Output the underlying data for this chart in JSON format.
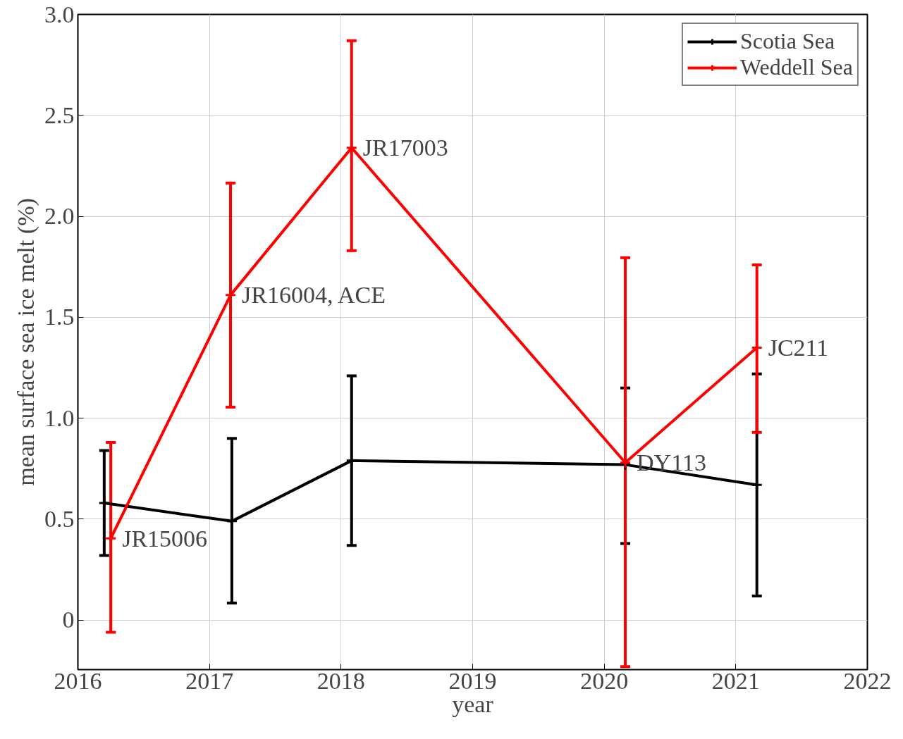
{
  "chart_data": {
    "type": "line",
    "xlabel": "year",
    "ylabel": "mean surface sea ice melt (%)",
    "xlim": [
      2016,
      2022
    ],
    "xticks": [
      2016,
      2017,
      2018,
      2019,
      2020,
      2021,
      2022
    ],
    "ylim": [
      -0.245,
      3.0
    ],
    "yticks": [
      0,
      {
        "value": 0.5,
        "label": "0.5"
      },
      {
        "value": 1.0,
        "label": "1.0"
      },
      {
        "value": 1.5,
        "label": "1.5"
      },
      {
        "value": 2.0,
        "label": "2.0"
      },
      {
        "value": 2.5,
        "label": "2.5"
      },
      {
        "value": 3.0,
        "label": "3.0"
      }
    ],
    "grid": true,
    "legend": "top right",
    "marker": "cross",
    "line_style": "solid",
    "series": [
      {
        "name": "Scotia Sea",
        "color": "#000000",
        "x": [
          2016.2,
          2017.17,
          2018.08,
          2020.16,
          2021.16
        ],
        "values": [
          0.58,
          0.49,
          0.79,
          0.77,
          0.67
        ],
        "errors": [
          [
            0.32,
            0.84
          ],
          [
            0.085,
            0.9
          ],
          [
            0.37,
            1.21
          ],
          [
            0.38,
            1.15
          ],
          [
            0.12,
            1.22
          ]
        ]
      },
      {
        "name": "Weddell Sea",
        "color": "#ff0000",
        "x": [
          2016.25,
          2017.16,
          2018.08,
          2020.16,
          2021.16
        ],
        "values": [
          0.405,
          1.61,
          2.34,
          0.78,
          1.35
        ],
        "errors": [
          [
            -0.06,
            0.88
          ],
          [
            1.055,
            2.165
          ],
          [
            1.83,
            2.87
          ],
          [
            -0.23,
            1.795
          ],
          [
            0.93,
            1.76
          ]
        ]
      }
    ],
    "annotations": [
      {
        "text": "JR15006",
        "x": 2016.25,
        "y": 0.405
      },
      {
        "text": "JR16004, ACE",
        "x": 2017.16,
        "y": 1.61
      },
      {
        "text": "JR17003",
        "x": 2018.08,
        "y": 2.34
      },
      {
        "text": "DY113",
        "x": 2020.16,
        "y": 0.78
      },
      {
        "text": "JC211",
        "x": 2021.16,
        "y": 1.35
      }
    ]
  }
}
